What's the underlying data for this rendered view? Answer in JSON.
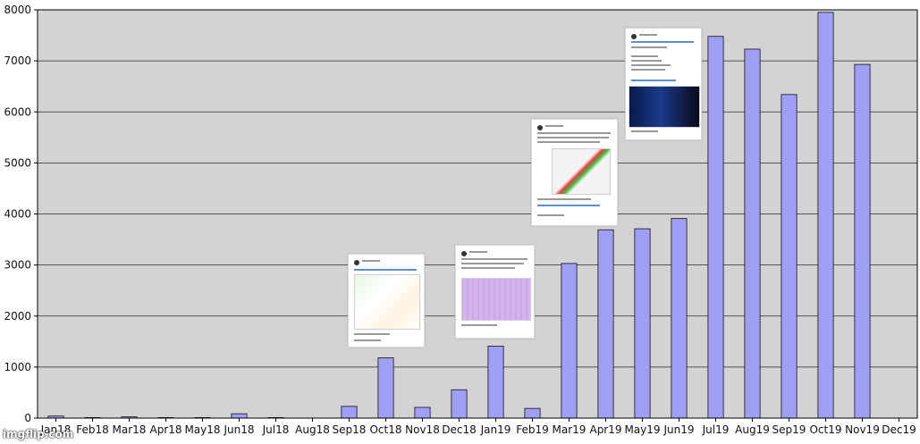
{
  "chart_data": {
    "type": "bar",
    "categories": [
      "Jan18",
      "Feb18",
      "Mar18",
      "Apr18",
      "May18",
      "Jun18",
      "Jul18",
      "Aug18",
      "Sep18",
      "Oct18",
      "Nov18",
      "Dec18",
      "Jan19",
      "Feb19",
      "Mar19",
      "Apr19",
      "May19",
      "Jun19",
      "Jul19",
      "Aug19",
      "Sep19",
      "Oct19",
      "Nov19",
      "Dec19"
    ],
    "values": [
      40,
      10,
      25,
      10,
      10,
      85,
      10,
      0,
      230,
      1180,
      210,
      555,
      1410,
      190,
      3030,
      3690,
      3710,
      3910,
      7480,
      7230,
      6340,
      7950,
      6930,
      0
    ],
    "ylim": [
      0,
      8000
    ],
    "yticks": [
      0,
      1000,
      2000,
      3000,
      4000,
      5000,
      6000,
      7000,
      8000
    ],
    "grid": "horizontal",
    "colors": {
      "bar": "#9f9ff5",
      "bar_edge": "#111111",
      "plot_bg": "#d3d3d3"
    },
    "title": "",
    "xlabel": "",
    "ylabel": ""
  },
  "watermark": "imgflip.com"
}
